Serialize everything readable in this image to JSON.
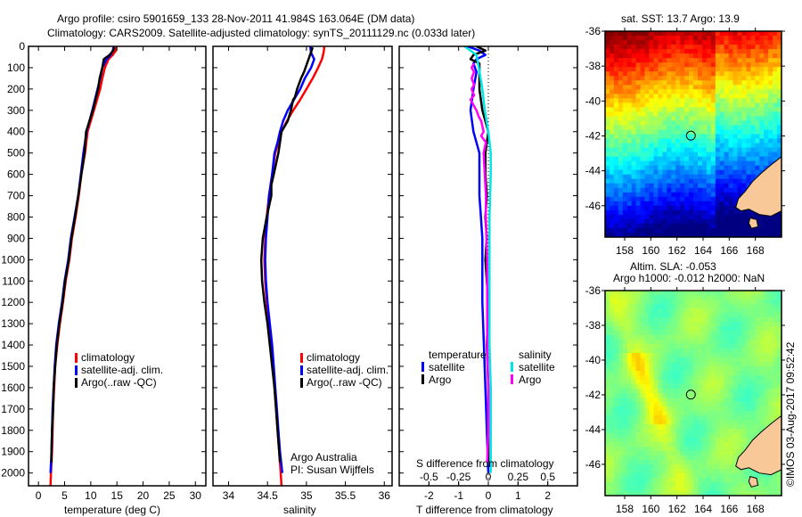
{
  "header": {
    "line1": "Argo profile: csiro 5901659_133 28-Nov-2011 41.984S 163.064E (DM data)",
    "line2": "Climatology: CARS2009. Satellite-adjusted climatology: synTS_20111129.nc (0.033d later)"
  },
  "colors": {
    "climatology": "#ff0000",
    "satellite": "#0000ff",
    "argo": "#000000",
    "sal_satellite": "#00e5e5",
    "sal_argo": "#ff00ff",
    "land": "#f8c898"
  },
  "chart_data": [
    {
      "id": "temperature",
      "type": "line",
      "xlabel": "temperature (deg C)",
      "ylabel": "",
      "xlim": [
        -1.9,
        32
      ],
      "ylim": [
        2060,
        0
      ],
      "xticks": [
        0,
        5,
        10,
        15,
        20,
        25,
        30
      ],
      "yticks": [
        0,
        100,
        200,
        300,
        400,
        500,
        600,
        700,
        800,
        900,
        1000,
        1100,
        1200,
        1300,
        1400,
        1500,
        1600,
        1700,
        1800,
        1900,
        2000
      ],
      "legend": {
        "placement": "center",
        "entries": [
          "climatology",
          "satellite-adj. clim.",
          "Argo(..raw -QC)"
        ]
      },
      "series": [
        {
          "name": "climatology",
          "color": "climatology",
          "depth": [
            0,
            20,
            40,
            60,
            100,
            150,
            200,
            300,
            400,
            500,
            600,
            700,
            800,
            900,
            1000,
            1100,
            1200,
            1300,
            1400,
            1500,
            1600,
            1700,
            1800,
            1900,
            2000,
            2060
          ],
          "values": [
            14.9,
            14.8,
            14.2,
            13.4,
            12.7,
            12.2,
            11.8,
            10.6,
            9.4,
            8.9,
            8.2,
            7.7,
            7.1,
            6.4,
            5.9,
            5.2,
            4.7,
            4.1,
            3.6,
            3.2,
            3.0,
            2.8,
            2.7,
            2.6,
            2.4,
            2.3
          ]
        },
        {
          "name": "satellite-adj. clim.",
          "color": "satellite",
          "depth": [
            0,
            20,
            40,
            60,
            100,
            150,
            200,
            300,
            400,
            500,
            600,
            700,
            800,
            900,
            1000,
            1100,
            1200,
            1300,
            1400,
            1500,
            1600,
            1700,
            1800,
            1900,
            2000
          ],
          "values": [
            14.4,
            14.2,
            13.8,
            13.0,
            12.2,
            11.8,
            11.3,
            10.3,
            9.2,
            8.6,
            8.1,
            7.6,
            6.9,
            6.2,
            5.7,
            5.0,
            4.5,
            3.9,
            3.4,
            3.1,
            2.9,
            2.7,
            2.6,
            2.5,
            2.3
          ]
        },
        {
          "name": "Argo(..raw -QC)",
          "color": "argo",
          "depth": [
            5,
            20,
            40,
            60,
            100,
            150,
            200,
            300,
            400,
            500,
            600,
            700,
            800,
            900,
            1000,
            1100,
            1200,
            1300,
            1400,
            1500,
            1600,
            1700,
            1800,
            1900,
            1950
          ],
          "values": [
            14.5,
            14.3,
            13.6,
            12.5,
            12.2,
            11.7,
            11.4,
            10.4,
            9.1,
            8.8,
            8.2,
            7.6,
            7.0,
            6.3,
            5.8,
            5.1,
            4.6,
            4.0,
            3.5,
            3.2,
            2.9,
            2.8,
            2.6,
            2.5,
            2.5
          ]
        }
      ]
    },
    {
      "id": "salinity",
      "type": "line",
      "xlabel": "salinity",
      "xlim": [
        33.8,
        36.1
      ],
      "ylim": [
        2060,
        0
      ],
      "xticks": [
        34,
        34.5,
        35,
        35.5,
        36
      ],
      "xticklabels": [
        "34",
        "34.5",
        "35",
        "35.5",
        "36"
      ],
      "legend": {
        "placement": "center-right",
        "entries": [
          "climatology",
          "satellite-adj. clim.",
          "Argo(..raw -QC)"
        ]
      },
      "annotation": [
        "Argo Australia",
        "PI: Susan Wijffels"
      ],
      "series": [
        {
          "name": "climatology",
          "color": "climatology",
          "depth": [
            0,
            30,
            60,
            100,
            150,
            200,
            250,
            300,
            350,
            400,
            450,
            500,
            600,
            700,
            800,
            900,
            1000,
            1100,
            1200,
            1300,
            1400,
            1500,
            1600,
            1700,
            1800,
            1900,
            2000,
            2060
          ],
          "values": [
            35.23,
            35.22,
            35.2,
            35.15,
            35.08,
            35.0,
            34.92,
            34.83,
            34.75,
            34.68,
            34.64,
            34.6,
            34.56,
            34.52,
            34.49,
            34.47,
            34.46,
            34.47,
            34.49,
            34.51,
            34.54,
            34.57,
            34.59,
            34.61,
            34.63,
            34.65,
            34.67,
            34.68
          ]
        },
        {
          "name": "satellite-adj. clim.",
          "color": "satellite",
          "depth": [
            0,
            30,
            60,
            100,
            150,
            200,
            250,
            300,
            350,
            400,
            450,
            500,
            600,
            700,
            800,
            900,
            1000,
            1100,
            1200,
            1300,
            1400,
            1500,
            1600,
            1700,
            1800,
            1900,
            2000
          ],
          "values": [
            35.05,
            35.06,
            35.1,
            35.06,
            34.98,
            34.92,
            34.84,
            34.76,
            34.7,
            34.66,
            34.63,
            34.59,
            34.56,
            34.52,
            34.5,
            34.48,
            34.47,
            34.48,
            34.5,
            34.53,
            34.56,
            34.58,
            34.6,
            34.62,
            34.64,
            34.66,
            34.69
          ]
        },
        {
          "name": "Argo(..raw -QC)",
          "color": "argo",
          "depth": [
            5,
            120,
            150,
            200,
            240,
            250,
            300,
            350,
            400,
            450,
            500,
            600,
            650,
            700,
            800,
            900,
            1000,
            1100,
            1200,
            1300,
            1400,
            1500,
            1600,
            1700,
            1800,
            1900,
            1950
          ],
          "values": [
            35.08,
            34.97,
            34.93,
            34.88,
            34.85,
            34.83,
            34.8,
            34.76,
            34.68,
            34.66,
            34.64,
            34.58,
            34.55,
            34.55,
            34.49,
            34.44,
            34.42,
            34.43,
            34.46,
            34.5,
            34.53,
            34.56,
            34.59,
            34.61,
            34.63,
            34.65,
            34.66
          ]
        }
      ]
    },
    {
      "id": "difference",
      "type": "line",
      "xlabel": "T difference from climatology",
      "xlabel_top": "S difference from climatology",
      "xlim": [
        -3,
        3
      ],
      "ylim": [
        2060,
        0
      ],
      "xticks": [
        -2,
        -1,
        0,
        1,
        2
      ],
      "xticks_s": [
        -0.5,
        -0.25,
        0,
        0.25,
        0.5
      ],
      "xticklabels_s": [
        "-0.5",
        "-0.25",
        "0",
        "0.25",
        "0.5"
      ],
      "zero_line": "dotted",
      "legend": {
        "placement": "lower-center",
        "groups": [
          {
            "title": "temperature",
            "entries": [
              "satellite",
              "Argo"
            ]
          },
          {
            "title": "salinity",
            "entries": [
              "satellite",
              "Argo"
            ]
          }
        ]
      },
      "series": [
        {
          "name": "temperature satellite",
          "color": "satellite",
          "depth": [
            0,
            20,
            40,
            60,
            80,
            120,
            200,
            300,
            400,
            500,
            600,
            700,
            800,
            900,
            1000,
            1100,
            1200,
            1400,
            1600,
            1800,
            2000
          ],
          "values": [
            -0.7,
            -0.3,
            -0.1,
            -0.4,
            -0.5,
            -0.4,
            -0.5,
            -0.6,
            -0.5,
            -0.3,
            -0.3,
            -0.3,
            -0.25,
            -0.2,
            -0.2,
            -0.2,
            -0.2,
            -0.15,
            -0.1,
            -0.05,
            0
          ]
        },
        {
          "name": "temperature Argo",
          "color": "argo",
          "depth": [
            0,
            20,
            40,
            60,
            80,
            120,
            200,
            300,
            400,
            500,
            600,
            700,
            800,
            900,
            1000,
            1100,
            1200,
            1400,
            1600,
            1800,
            1950
          ],
          "values": [
            -0.4,
            -0.1,
            -0.5,
            -0.6,
            -0.3,
            -0.3,
            -0.3,
            -0.2,
            0.0,
            -0.1,
            -0.1,
            -0.05,
            -0.1,
            -0.05,
            -0.1,
            -0.05,
            0.0,
            -0.05,
            0.0,
            0.0,
            0.0
          ]
        },
        {
          "name": "salinity satellite",
          "color": "sal_satellite",
          "depth": [
            0,
            40,
            100,
            200,
            300,
            400,
            500,
            600,
            800,
            1000,
            1200,
            1400,
            1600,
            1800,
            2000
          ],
          "values": [
            -0.2,
            -0.1,
            -0.08,
            -0.05,
            -0.03,
            0.0,
            0.02,
            0.02,
            0.01,
            0.01,
            0.01,
            0.01,
            0.02,
            0.02,
            0.02
          ]
        },
        {
          "name": "salinity Argo",
          "color": "sal_argo",
          "depth": [
            80,
            100,
            120,
            150,
            180,
            200,
            230,
            250,
            300,
            330,
            350,
            400,
            420,
            450,
            500,
            600,
            700,
            800,
            1000,
            1200,
            1400,
            1600,
            1800,
            1950
          ],
          "values": [
            -0.12,
            -0.14,
            -0.12,
            -0.14,
            -0.12,
            -0.14,
            -0.12,
            -0.15,
            -0.1,
            -0.08,
            -0.06,
            -0.04,
            -0.06,
            -0.02,
            -0.04,
            -0.03,
            -0.02,
            -0.02,
            -0.01,
            -0.01,
            -0.01,
            0.0,
            0.0,
            -0.01
          ]
        }
      ]
    },
    {
      "id": "sst-map",
      "type": "heatmap",
      "title": "sat. SST: 13.7 Argo: 13.9",
      "xlim": [
        156.5,
        170
      ],
      "ylim": [
        -47.8,
        -36
      ],
      "xticks": [
        158,
        160,
        162,
        164,
        166,
        168
      ],
      "yticks": [
        -36,
        -38,
        -40,
        -42,
        -44,
        -46
      ],
      "marker": {
        "lon": 163.064,
        "lat": -41.984
      },
      "colormap": "jet"
    },
    {
      "id": "sla-map",
      "type": "heatmap",
      "title": [
        "Altim. SLA: -0.053",
        "Argo h1000: -0.012 h2000: NaN"
      ],
      "xlim": [
        156.5,
        170
      ],
      "ylim": [
        -47.8,
        -36
      ],
      "xticks": [
        158,
        160,
        162,
        164,
        166,
        168
      ],
      "yticks": [
        -36,
        -38,
        -40,
        -42,
        -44,
        -46
      ],
      "marker": {
        "lon": 163.064,
        "lat": -41.984
      },
      "colormap": "jet"
    }
  ],
  "legend_labels": {
    "climatology": "climatology",
    "satellite_adj": "satellite-adj. clim.",
    "argo": "Argo(..raw -QC)",
    "temperature": "temperature",
    "salinity": "salinity",
    "satellite": "satellite",
    "argo_short": "Argo"
  },
  "credit": "©IMOS 03-Aug-2017 09:52:42"
}
